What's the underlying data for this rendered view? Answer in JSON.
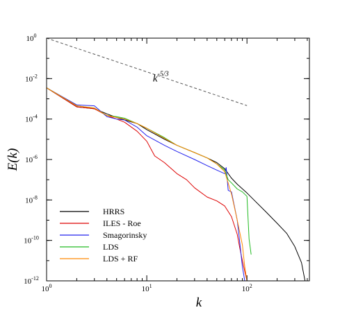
{
  "chart_data": {
    "type": "line",
    "xlabel": "k",
    "ylabel": "E(k)",
    "x_scale": "log",
    "y_scale": "log",
    "xlim": [
      1,
      420
    ],
    "ylim": [
      1e-12,
      1
    ],
    "x_ticks": [
      {
        "value": 1,
        "base": "10",
        "exp": "0"
      },
      {
        "value": 10,
        "base": "10",
        "exp": "1"
      },
      {
        "value": 100,
        "base": "10",
        "exp": "2"
      }
    ],
    "y_ticks": [
      {
        "value": 1,
        "base": "10",
        "exp": "0"
      },
      {
        "value": 0.01,
        "base": "10",
        "exp": "-2"
      },
      {
        "value": 0.0001,
        "base": "10",
        "exp": "-4"
      },
      {
        "value": 1e-06,
        "base": "10",
        "exp": "-6"
      },
      {
        "value": 1e-08,
        "base": "10",
        "exp": "-8"
      },
      {
        "value": 1e-10,
        "base": "10",
        "exp": "-10"
      },
      {
        "value": 1e-12,
        "base": "10",
        "exp": "-12"
      }
    ],
    "grid": false,
    "legend_position": "bottom-left",
    "annotation": {
      "base": "k",
      "exp": "-5/3",
      "reference_line": {
        "x": [
          1,
          100
        ],
        "y": [
          1,
          0.000464
        ],
        "style": "dashed"
      }
    },
    "series": [
      {
        "name": "HRRS",
        "color": "#000000",
        "x": [
          1,
          2,
          3,
          4,
          5,
          6,
          8,
          10,
          15,
          20,
          30,
          40,
          50,
          60,
          70,
          80,
          100,
          120,
          150,
          200,
          250,
          300,
          350,
          380
        ],
        "y": [
          0.0035,
          0.0004,
          0.00032,
          0.00018,
          0.00012,
          9e-05,
          6e-05,
          3e-05,
          1e-05,
          5e-06,
          2.2e-06,
          1.2e-06,
          7e-07,
          3.5e-07,
          1.2e-07,
          6e-08,
          2.2e-08,
          9e-09,
          3e-09,
          7e-10,
          2.2e-10,
          5e-11,
          8e-12,
          1e-12
        ]
      },
      {
        "name": "ILES - Roe",
        "color": "#dd0000",
        "x": [
          1,
          2,
          3,
          4,
          5,
          6,
          8,
          10,
          12,
          15,
          20,
          25,
          30,
          40,
          50,
          60,
          70,
          80,
          85,
          90,
          95,
          100
        ],
        "y": [
          0.0035,
          0.0004,
          0.00032,
          0.00015,
          0.0001,
          7e-05,
          2.5e-05,
          8e-06,
          1.5e-06,
          7e-07,
          2e-07,
          1e-07,
          4e-08,
          1.4e-08,
          9e-09,
          5e-09,
          1.5e-09,
          2e-10,
          4e-11,
          1e-11,
          3e-12,
          1e-12
        ]
      },
      {
        "name": "Smagorinsky",
        "color": "#2222ee",
        "x": [
          1,
          2,
          3,
          4,
          5,
          6,
          8,
          10,
          15,
          20,
          30,
          40,
          50,
          60,
          62,
          65,
          70,
          80,
          85,
          90,
          95
        ],
        "y": [
          0.0035,
          0.0005,
          0.00045,
          0.00013,
          0.0001,
          9e-05,
          4e-05,
          1.5e-05,
          5e-06,
          2.5e-06,
          1e-06,
          5e-07,
          3e-07,
          2e-07,
          4e-07,
          3e-08,
          2.5e-08,
          1e-09,
          7e-11,
          5e-12,
          1e-12
        ]
      },
      {
        "name": "LDS",
        "color": "#22bb22",
        "x": [
          1,
          2,
          3,
          4,
          5,
          6,
          8,
          10,
          15,
          20,
          30,
          40,
          50,
          60,
          65,
          70,
          80,
          90,
          100,
          105,
          110
        ],
        "y": [
          0.0035,
          0.00045,
          0.00035,
          0.00015,
          0.00013,
          0.00011,
          6e-05,
          3.5e-05,
          1.2e-05,
          5e-06,
          2.2e-06,
          1.2e-06,
          6e-07,
          3e-07,
          1e-07,
          7e-08,
          3.5e-08,
          2.5e-08,
          1.5e-08,
          1.2e-10,
          2e-11
        ]
      },
      {
        "name": "LDS + RF",
        "color": "#ff8800",
        "x": [
          1,
          2,
          3,
          4,
          5,
          6,
          8,
          10,
          15,
          20,
          30,
          40,
          50,
          60,
          70,
          80,
          90,
          95,
          100
        ],
        "y": [
          0.0035,
          0.00045,
          0.00035,
          0.00015,
          0.00012,
          0.0001,
          6e-05,
          3.5e-05,
          1.1e-05,
          5e-06,
          2.2e-06,
          1.2e-06,
          6e-07,
          2.5e-07,
          2e-08,
          1e-09,
          6e-11,
          5e-12,
          1e-12
        ]
      }
    ]
  }
}
